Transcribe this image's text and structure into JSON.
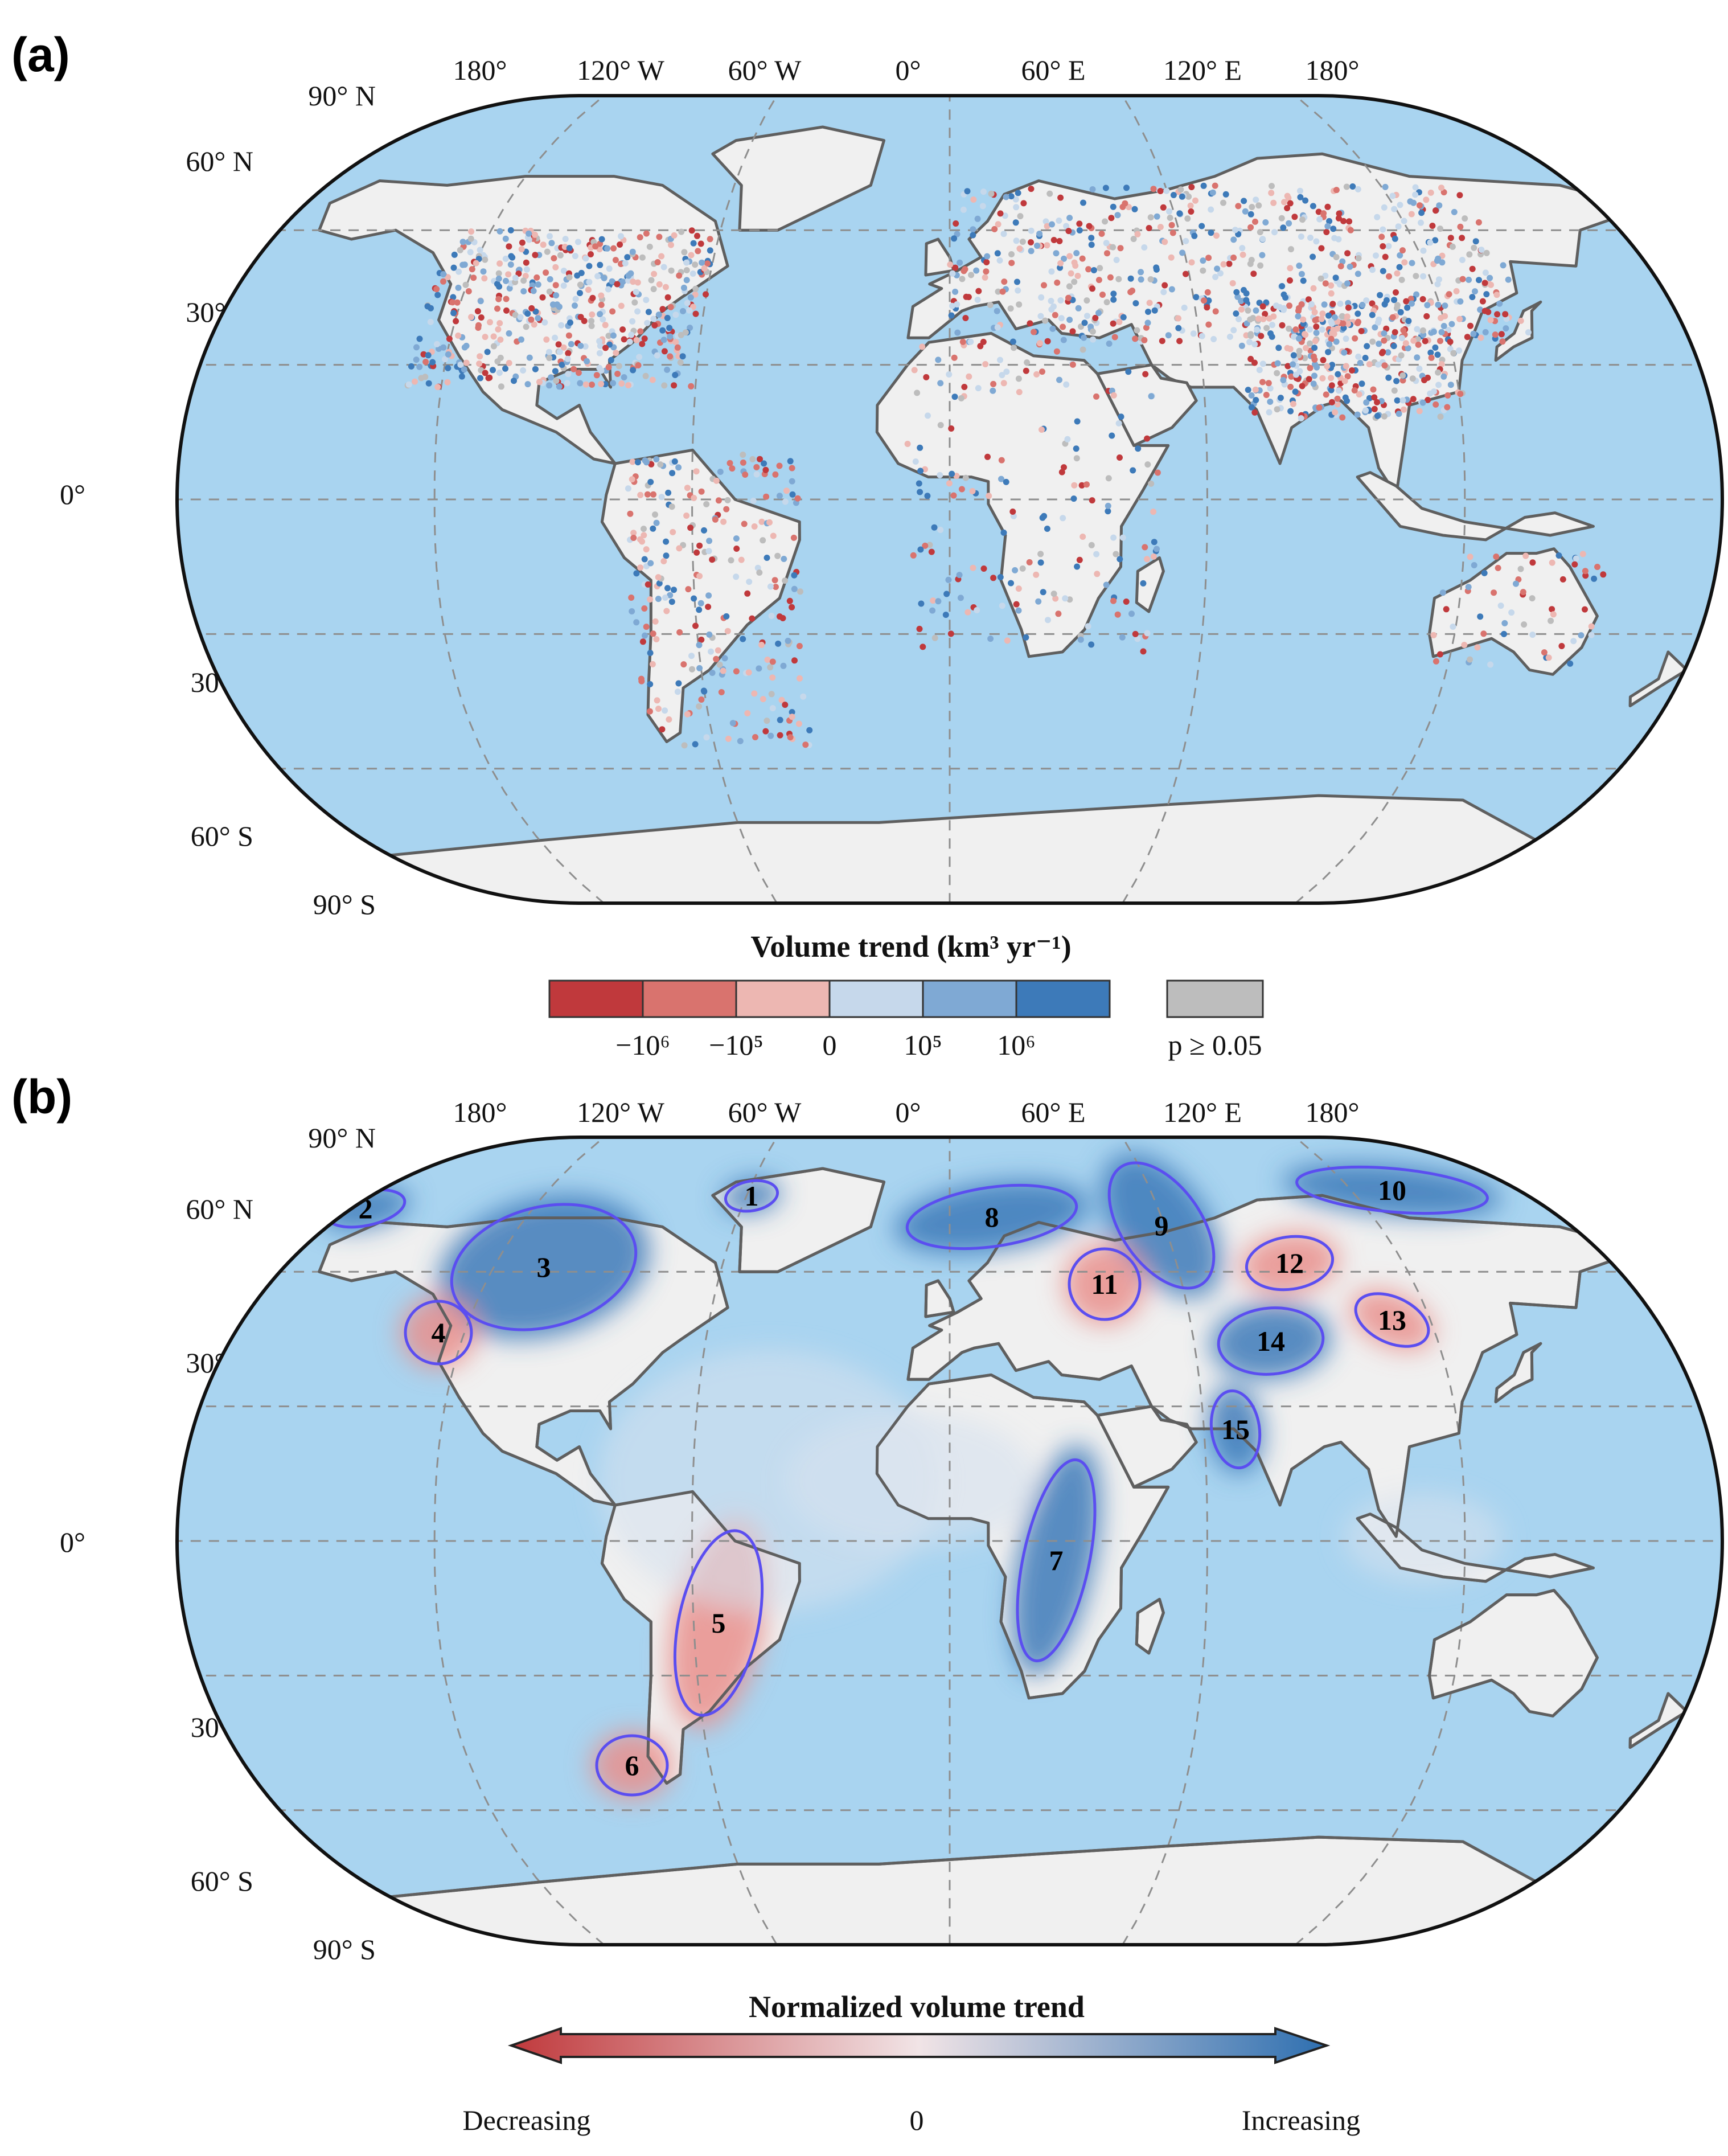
{
  "panel_a": {
    "label": "(a)",
    "lon_labels": [
      "180°",
      "120° W",
      "60° W",
      "0°",
      "60° E",
      "120° E",
      "180°"
    ],
    "lat_labels": [
      "90° N",
      "60° N",
      "30° N",
      "0°",
      "30° S",
      "60° S",
      "90° S"
    ],
    "colorbar": {
      "title": "Volume trend (km³ yr⁻¹)",
      "bins": [
        {
          "color": "#c0393c"
        },
        {
          "color": "#d9736e"
        },
        {
          "color": "#edb7b2"
        },
        {
          "color": "#c6d8eb"
        },
        {
          "color": "#7fa9d4"
        },
        {
          "color": "#3d7ab9"
        }
      ],
      "tick_labels": [
        "−10⁶",
        "−10⁵",
        "0",
        "10⁵",
        "10⁶"
      ],
      "insignificant_color": "#bdbdbd",
      "insignificant_label": "p ≥ 0.05"
    }
  },
  "panel_b": {
    "label": "(b)",
    "lon_labels": [
      "180°",
      "120° W",
      "60° W",
      "0°",
      "60° E",
      "120° E",
      "180°"
    ],
    "lat_labels": [
      "90° N",
      "60° N",
      "30° N",
      "0°",
      "30° S",
      "60° S",
      "90° S"
    ],
    "regions": [
      {
        "label": "1",
        "trend": "increasing"
      },
      {
        "label": "2",
        "trend": "increasing"
      },
      {
        "label": "3",
        "trend": "increasing"
      },
      {
        "label": "4",
        "trend": "decreasing"
      },
      {
        "label": "5",
        "trend": "decreasing"
      },
      {
        "label": "6",
        "trend": "decreasing"
      },
      {
        "label": "7",
        "trend": "increasing"
      },
      {
        "label": "8",
        "trend": "increasing"
      },
      {
        "label": "9",
        "trend": "increasing"
      },
      {
        "label": "10",
        "trend": "increasing"
      },
      {
        "label": "11",
        "trend": "decreasing"
      },
      {
        "label": "12",
        "trend": "decreasing"
      },
      {
        "label": "13",
        "trend": "decreasing"
      },
      {
        "label": "14",
        "trend": "increasing"
      },
      {
        "label": "15",
        "trend": "increasing"
      }
    ],
    "colorbar": {
      "title": "Normalized volume trend",
      "left_label": "Decreasing",
      "center_label": "0",
      "right_label": "Increasing",
      "colors": [
        "#c0393c",
        "#f3dede",
        "#2e6fb0"
      ]
    }
  },
  "palette": {
    "ocean": "#a9d4f0",
    "land": "#f0f0f0",
    "coast": "#5f5f5f",
    "ellipse": "#5b4ef0",
    "increase": "#3d7ab9",
    "decrease": "#c0393c"
  }
}
